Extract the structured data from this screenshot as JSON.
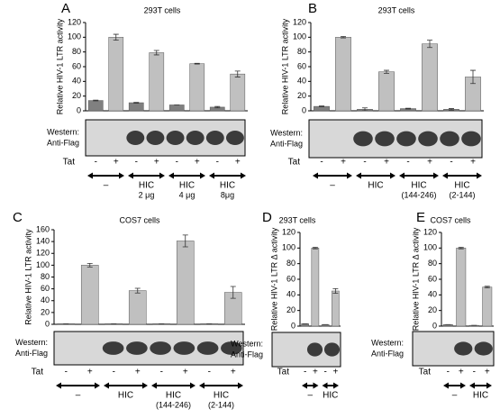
{
  "chart_data": [
    {
      "type": "bar",
      "letter": "A",
      "title": "293T cells",
      "y_label": "Relative HIV-1 LTR activity",
      "ylim": [
        0,
        120
      ],
      "yticks": [
        0,
        20,
        40,
        60,
        80,
        100,
        120
      ],
      "categories": [
        "-",
        "+",
        "-",
        "+",
        "-",
        "+",
        "-",
        "+"
      ],
      "values": [
        14,
        100,
        11,
        79,
        8,
        64,
        5,
        50
      ],
      "errors": [
        0.5,
        4,
        0.5,
        3,
        0,
        0.5,
        1,
        4
      ],
      "colors": [
        "#808080",
        "#c0c0c0",
        "#808080",
        "#c0c0c0",
        "#808080",
        "#c0c0c0",
        "#808080",
        "#c0c0c0"
      ],
      "tat_label": "Tat",
      "western_label": [
        "Western:",
        "Anti-Flag"
      ],
      "groups": [
        {
          "label": "–"
        },
        {
          "label": "HIC",
          "sublabel": "2 μg"
        },
        {
          "label": "HIC",
          "sublabel": "4 μg"
        },
        {
          "label": "HIC",
          "sublabel": "8μg"
        }
      ]
    },
    {
      "type": "bar",
      "letter": "B",
      "title": "293T cells",
      "y_label": "Relative HIV-1 LTR activity",
      "ylim": [
        0,
        120
      ],
      "yticks": [
        0,
        20,
        40,
        60,
        80,
        100,
        120
      ],
      "categories": [
        "-",
        "+",
        "-",
        "+",
        "-",
        "+",
        "-",
        "+"
      ],
      "values": [
        6,
        100,
        2,
        53,
        3,
        91,
        2,
        46
      ],
      "errors": [
        0.5,
        1,
        2,
        2,
        0.5,
        5,
        1,
        9
      ],
      "colors": [
        "#808080",
        "#c0c0c0",
        "#808080",
        "#c0c0c0",
        "#808080",
        "#c0c0c0",
        "#808080",
        "#c0c0c0"
      ],
      "tat_label": "Tat",
      "western_label": [
        "Western:",
        "Anti-Flag"
      ],
      "groups": [
        {
          "label": "–"
        },
        {
          "label": "HIC"
        },
        {
          "label": "HIC",
          "sublabel": "(144-246)"
        },
        {
          "label": "HIC",
          "sublabel": "(2-144)"
        }
      ]
    },
    {
      "type": "bar",
      "letter": "C",
      "title": "COS7 cells",
      "y_label": "Relative HIV-1 LTR activity",
      "ylim": [
        0,
        160
      ],
      "yticks": [
        0,
        20,
        40,
        60,
        80,
        100,
        120,
        140,
        160
      ],
      "categories": [
        "-",
        "+",
        "-",
        "+",
        "-",
        "+",
        "-",
        "+"
      ],
      "values": [
        1,
        100,
        1,
        57,
        1,
        141,
        1,
        54
      ],
      "errors": [
        0,
        3,
        0,
        4,
        0,
        10,
        0,
        10
      ],
      "colors": [
        "#808080",
        "#c0c0c0",
        "#808080",
        "#c0c0c0",
        "#808080",
        "#c0c0c0",
        "#808080",
        "#c0c0c0"
      ],
      "tat_label": "Tat",
      "western_label": [
        "Western:",
        "Anti-Flag"
      ],
      "groups": [
        {
          "label": "–"
        },
        {
          "label": "HIC"
        },
        {
          "label": "HIC",
          "sublabel": "(144-246)"
        },
        {
          "label": "HIC",
          "sublabel": "(2-144)"
        }
      ]
    },
    {
      "type": "bar",
      "letter": "D",
      "title": "293T cells",
      "y_label": "Relative HIV-1 LTR Δ activity",
      "ylim": [
        0,
        120
      ],
      "yticks": [
        0,
        20,
        40,
        60,
        80,
        100,
        120
      ],
      "categories": [
        "-",
        "+",
        "-",
        "+"
      ],
      "values": [
        3,
        100,
        2,
        45
      ],
      "errors": [
        0,
        1,
        0,
        3
      ],
      "colors": [
        "#808080",
        "#c0c0c0",
        "#808080",
        "#c0c0c0"
      ],
      "tat_label": "Tat",
      "western_label": [
        "Western:",
        "Anti-Flag"
      ],
      "groups": [
        {
          "label": "–"
        },
        {
          "label": "HIC"
        }
      ]
    },
    {
      "type": "bar",
      "letter": "E",
      "title": "COS7 cells",
      "y_label": "Relative HIV-1 LTR Δ activity",
      "ylim": [
        0,
        120
      ],
      "yticks": [
        0,
        20,
        40,
        60,
        80,
        100,
        120
      ],
      "categories": [
        "-",
        "+",
        "-",
        "+"
      ],
      "values": [
        2,
        100,
        1,
        50
      ],
      "errors": [
        0,
        1,
        0,
        1
      ],
      "colors": [
        "#808080",
        "#c0c0c0",
        "#808080",
        "#c0c0c0"
      ],
      "tat_label": "Tat",
      "western_label": [
        "Western:",
        "Anti-Flag"
      ],
      "groups": [
        {
          "label": "–"
        },
        {
          "label": "HIC"
        }
      ]
    }
  ]
}
